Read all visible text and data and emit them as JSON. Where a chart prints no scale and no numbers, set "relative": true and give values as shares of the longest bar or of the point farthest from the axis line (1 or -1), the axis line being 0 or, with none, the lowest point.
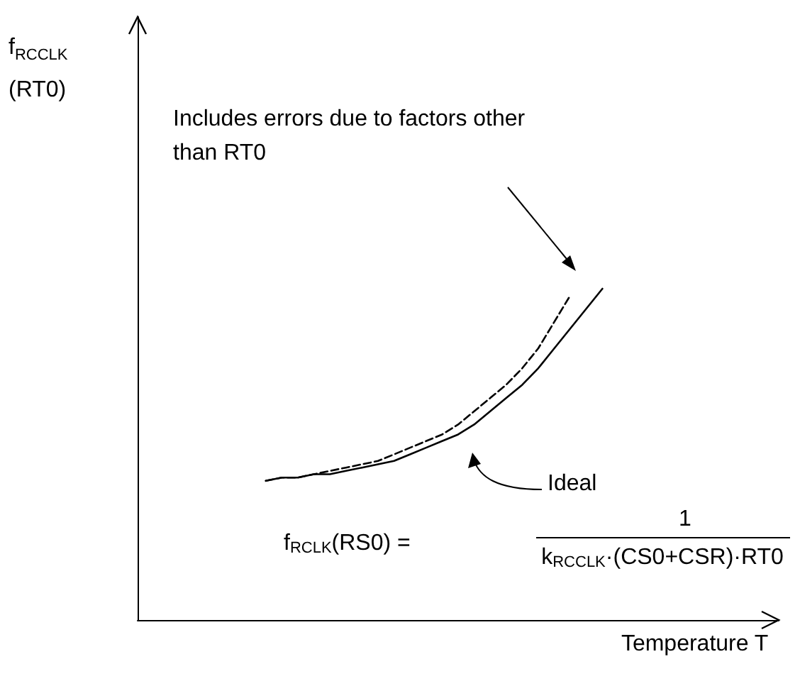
{
  "chart_data": {
    "type": "line",
    "relative": true,
    "categories": [
      null,
      null,
      null,
      null,
      null,
      null,
      null,
      null,
      null,
      null,
      null,
      null,
      null,
      null,
      null,
      null,
      null,
      null,
      null,
      null,
      null,
      null,
      null,
      null,
      null,
      null,
      null,
      null,
      null,
      null,
      null,
      null,
      null,
      null,
      null,
      null,
      null,
      null,
      null,
      null,
      null
    ],
    "series": [
      {
        "color": "#000000",
        "line_style": "solid",
        "values": [
          null,
          null,
          null,
          null,
          null,
          null,
          null,
          null,
          0.42,
          0.43,
          0.43,
          0.44,
          0.44,
          0.45,
          0.46,
          0.47,
          0.48,
          0.5,
          0.52,
          0.54,
          0.56,
          0.59,
          0.63,
          0.67,
          0.71,
          0.76,
          0.82,
          0.88,
          0.94,
          1.0,
          null,
          null,
          null,
          null,
          null,
          null,
          null,
          null,
          null,
          null,
          null
        ]
      },
      {
        "color": "#000000",
        "line_style": "dashed",
        "values": [
          null,
          null,
          null,
          null,
          null,
          null,
          null,
          null,
          0.42,
          0.43,
          0.43,
          0.44,
          0.45,
          0.46,
          0.47,
          0.48,
          0.5,
          0.52,
          0.54,
          0.56,
          0.59,
          0.63,
          0.67,
          0.71,
          0.76,
          0.82,
          0.9,
          0.98,
          null,
          null,
          null,
          null,
          null,
          null,
          null,
          null,
          null,
          null,
          null,
          null,
          null
        ]
      }
    ],
    "xlabel": "Temperature T",
    "annotations": [
      "Includes errors due to factors other\nthan RT0",
      "Ideal",
      "f$_{RCLK}$(RS0) =",
      "1",
      "k$_{RCCLK}$·(CS0+CSR)·RT0",
      "f$_{RCCLK}$\n(RT0)"
    ],
    "marker": "none"
  }
}
